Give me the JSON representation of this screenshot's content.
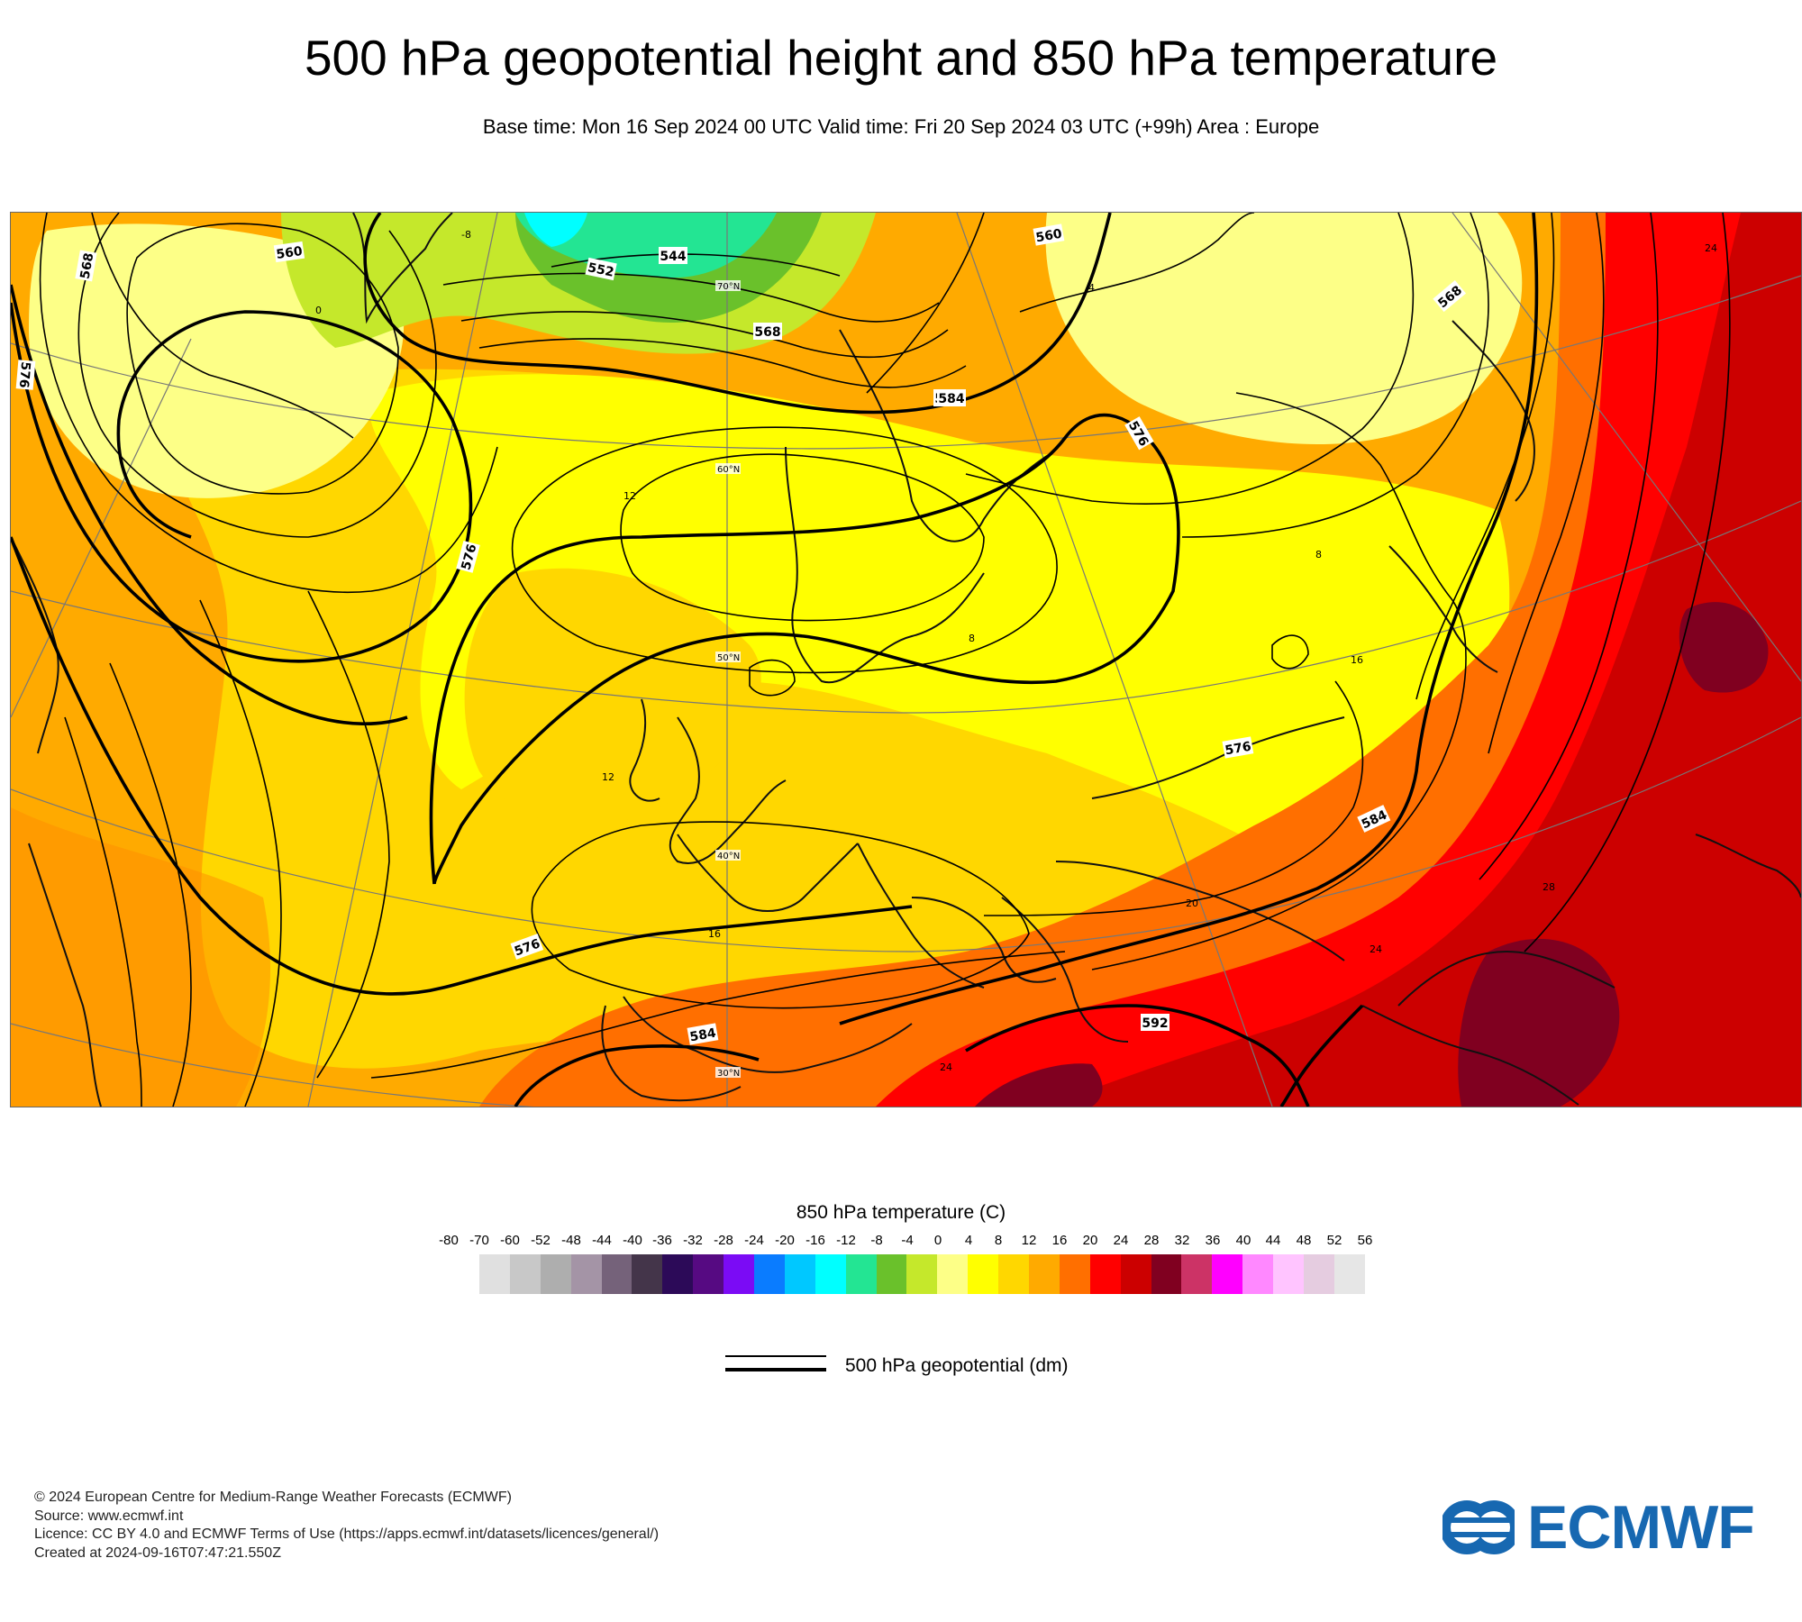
{
  "header": {
    "title": "500 hPa geopotential height and 850 hPa temperature",
    "subtitle": "Base time: Mon 16 Sep 2024 00 UTC Valid time: Fri 20 Sep 2024 03 UTC (+99h) Area : Europe"
  },
  "map": {
    "area": "Europe",
    "contour_labels": [
      "544",
      "552",
      "560",
      "560",
      "568",
      "568",
      "568",
      "568",
      "576",
      "576",
      "576",
      "576",
      "576",
      "584",
      "584",
      "584",
      "592"
    ],
    "temperature_labels": [
      "0",
      "4",
      "8",
      "8",
      "12",
      "12",
      "16",
      "16",
      "20",
      "24",
      "24",
      "24",
      "28",
      "-8"
    ],
    "graticule_labels": [
      "70°N",
      "60°N",
      "50°N",
      "40°N",
      "30°N"
    ]
  },
  "legend": {
    "temperature_title": "850 hPa temperature (C)",
    "ticks": [
      "-80",
      "-70",
      "-60",
      "-52",
      "-48",
      "-44",
      "-40",
      "-36",
      "-32",
      "-28",
      "-24",
      "-20",
      "-16",
      "-12",
      "-8",
      "-4",
      "0",
      "4",
      "8",
      "12",
      "16",
      "20",
      "24",
      "28",
      "32",
      "36",
      "40",
      "44",
      "48",
      "52",
      "56"
    ],
    "colors": [
      "#e0e0e0",
      "#c8c8c8",
      "#aeaeae",
      "#a494a6",
      "#75627a",
      "#44354a",
      "#2c0a58",
      "#560a82",
      "#7b0bf5",
      "#0a7cff",
      "#00c8ff",
      "#00ffff",
      "#23e593",
      "#6ac12b",
      "#c5e82b",
      "#fdff87",
      "#ffff00",
      "#ffd700",
      "#ffaa00",
      "#ff6f00",
      "#ff0000",
      "#cc0000",
      "#800020",
      "#cc3366",
      "#ff00ff",
      "#ff88ff",
      "#ffc4ff",
      "#e5cce0",
      "#e6e6e6"
    ],
    "geopotential_label": "500 hPa geopotential (dm)"
  },
  "footer": {
    "copyright": "© 2024 European Centre for Medium-Range Weather Forecasts (ECMWF)",
    "source": "Source: www.ecmwf.int",
    "licence": "Licence: CC BY 4.0 and ECMWF Terms of Use (https://apps.ecmwf.int/datasets/licences/general/)",
    "created": "Created at 2024-09-16T07:47:21.550Z",
    "logo_text": "ECMWF"
  }
}
